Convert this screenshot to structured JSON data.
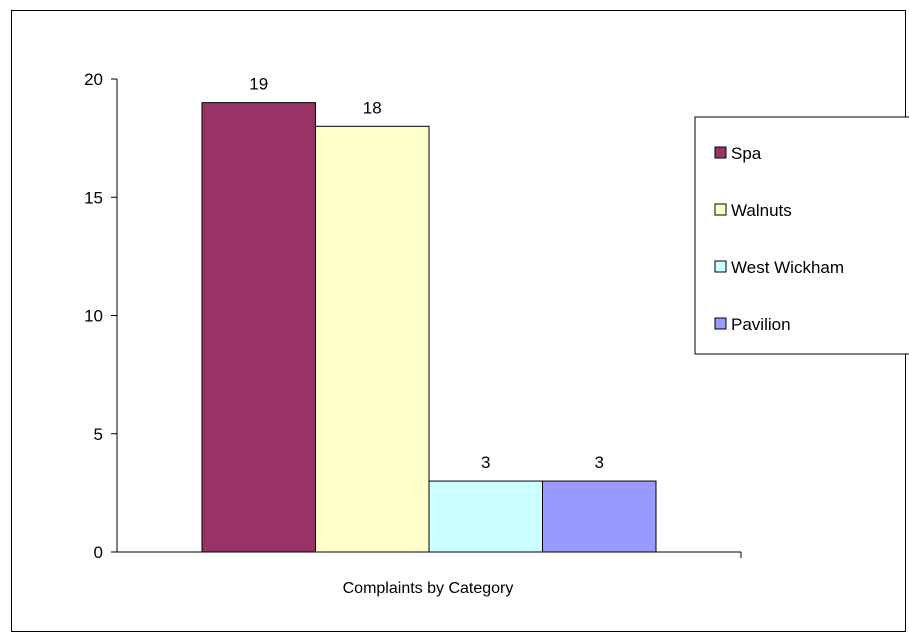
{
  "chart_data": {
    "type": "bar",
    "xlabel": "Complaints by Category",
    "ylabel": "",
    "ylim": [
      0,
      20
    ],
    "yticks": [
      0,
      5,
      10,
      15,
      20
    ],
    "categories": [
      "Complaints by Category"
    ],
    "series": [
      {
        "name": "Spa",
        "values": [
          19
        ],
        "color": "#993366"
      },
      {
        "name": "Walnuts",
        "values": [
          18
        ],
        "color": "#ffffcc"
      },
      {
        "name": "West Wickham",
        "values": [
          3
        ],
        "color": "#ccffff"
      },
      {
        "name": "Pavilion",
        "values": [
          3
        ],
        "color": "#9999ff"
      }
    ],
    "data_labels": [
      "19",
      "18",
      "3",
      "3"
    ],
    "legend": {
      "placement": "right"
    },
    "grid": false
  }
}
